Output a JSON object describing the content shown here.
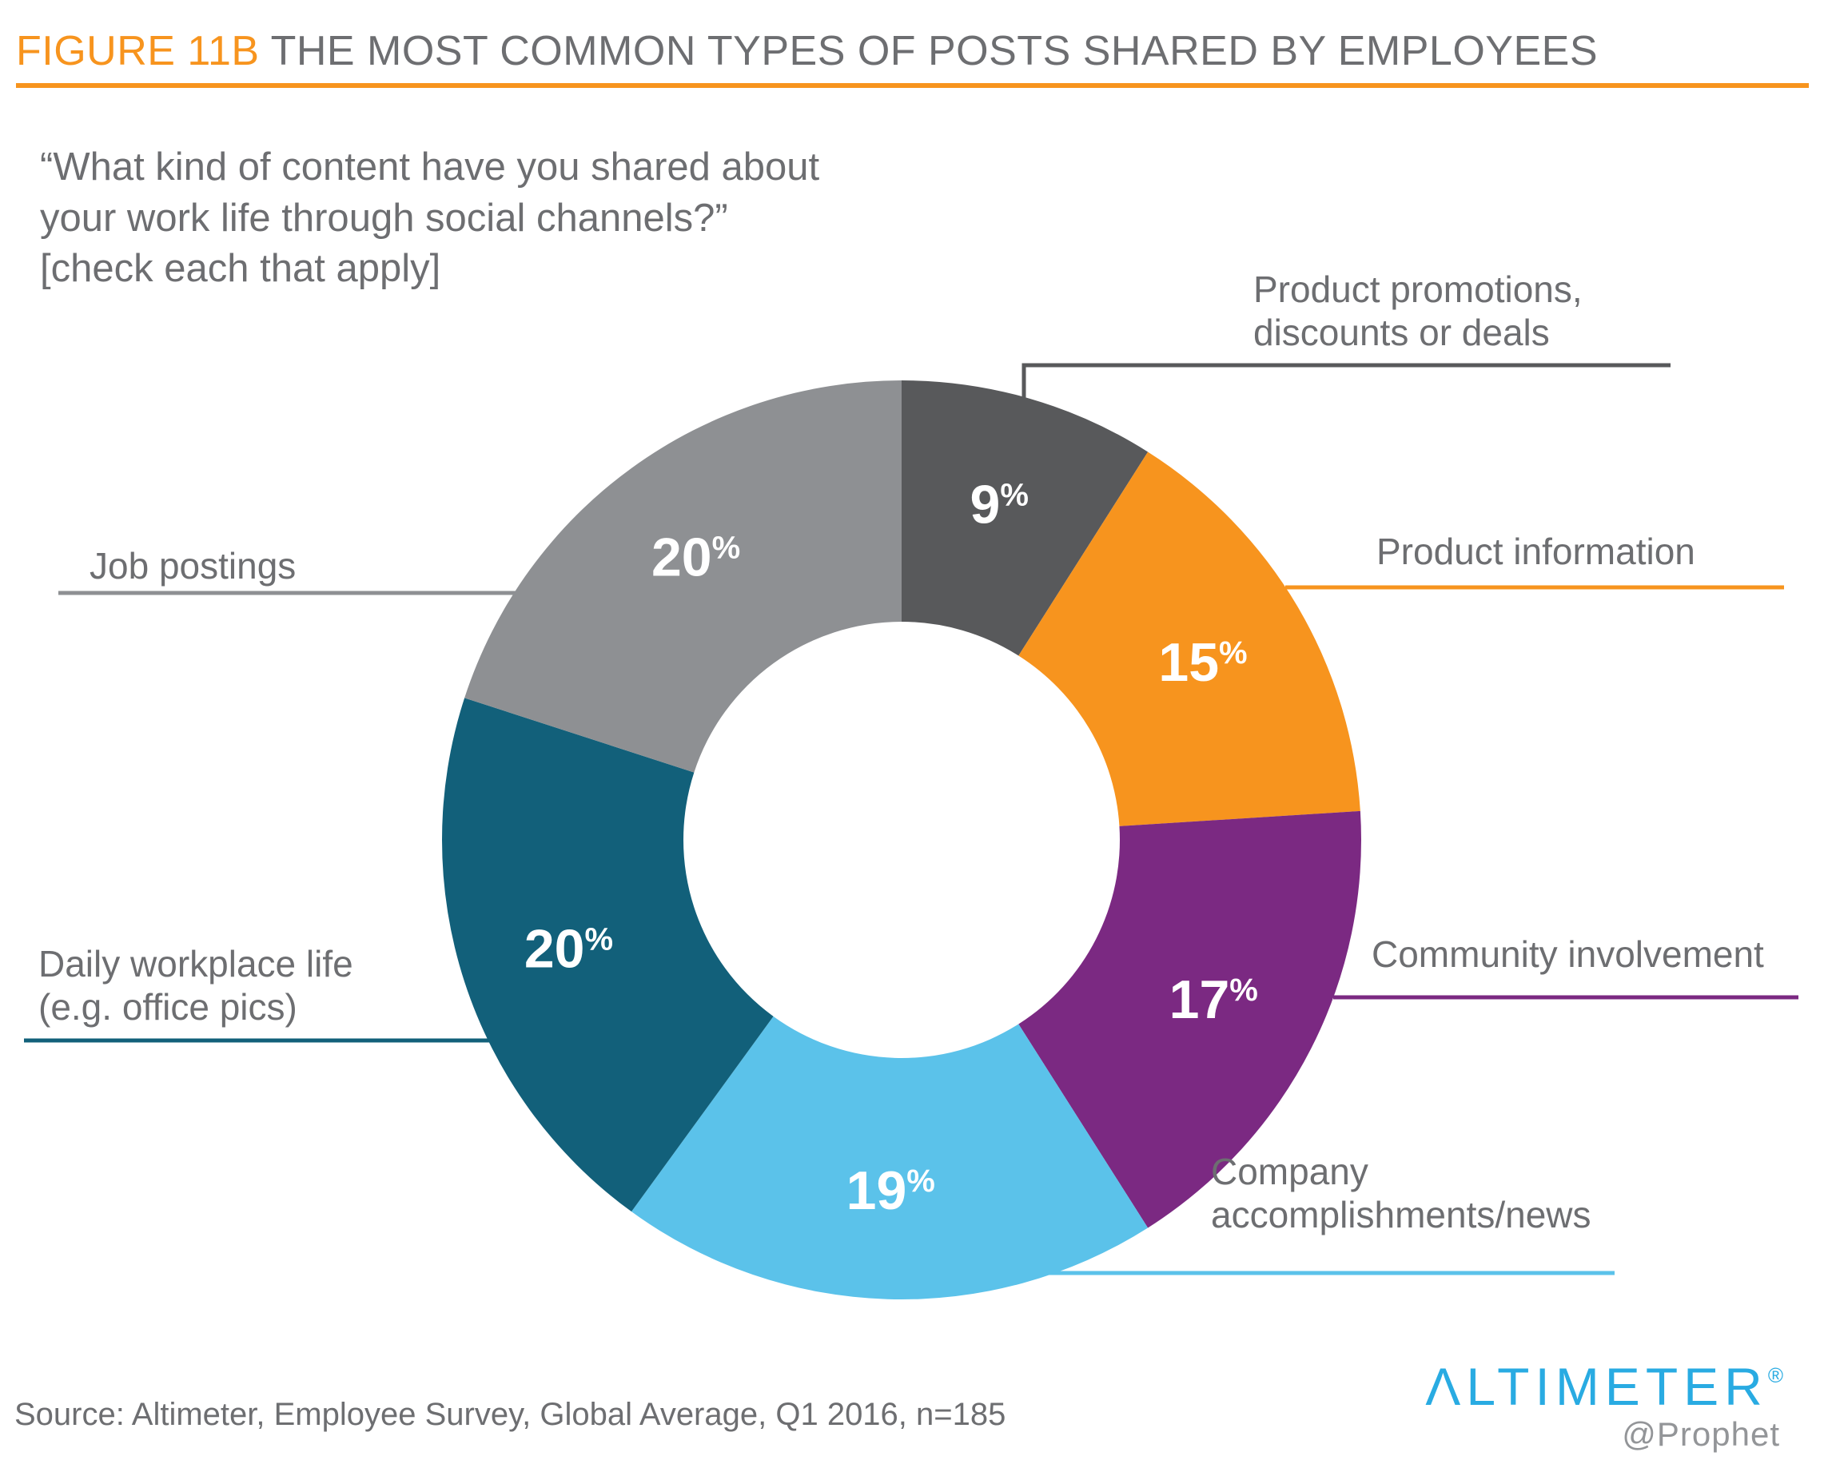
{
  "figure": {
    "label": "FIGURE 11B",
    "title": "THE MOST COMMON TYPES OF POSTS SHARED BY EMPLOYEES"
  },
  "question": {
    "line1": "“What kind of content have you shared about",
    "line2": "your work life through social channels?”",
    "line3": "[check each that apply]"
  },
  "chart_data": {
    "type": "pie",
    "variant": "donut",
    "title": "The most common types of posts shared by employees",
    "subtitle": "What kind of content have you shared about your work life through social channels? [check each that apply]",
    "units": "%",
    "total": 100,
    "start_angle_deg": 0,
    "direction": "clockwise",
    "legend_position": "callouts-around-chart",
    "segments": [
      {
        "label": "Product promotions, discounts or deals",
        "value": 9,
        "display": "9%",
        "color": "#58595B"
      },
      {
        "label": "Product information",
        "value": 15,
        "display": "15%",
        "color": "#F7941E"
      },
      {
        "label": "Community involvement",
        "value": 17,
        "display": "17%",
        "color": "#7B2982"
      },
      {
        "label": "Company accomplishments/news",
        "value": 19,
        "display": "19%",
        "color": "#5BC2EA"
      },
      {
        "label": "Daily workplace life (e.g. office pics)",
        "value": 20,
        "display": "20%",
        "color": "#12607A"
      },
      {
        "label": "Job postings",
        "value": 20,
        "display": "20%",
        "color": "#8E9093"
      }
    ]
  },
  "callouts": {
    "product_promotions": {
      "line1": "Product promotions,",
      "line2": "discounts or deals"
    },
    "product_information": {
      "line1": "Product information",
      "line2": ""
    },
    "community_involvement": {
      "line1": "Community involvement",
      "line2": ""
    },
    "company_accomplishments": {
      "line1": "Company",
      "line2": "accomplishments/news"
    },
    "daily_workplace": {
      "line1": "Daily workplace life",
      "line2": "(e.g. office pics)"
    },
    "job_postings": {
      "line1": "Job postings",
      "line2": ""
    }
  },
  "source": "Source: Altimeter, Employee Survey, Global Average, Q1 2016, n=185",
  "logo": {
    "brand": "ΛLTIMETER",
    "registered": "®",
    "sub": "@Prophet"
  },
  "colors": {
    "accent_orange": "#F7941E",
    "text_gray": "#6D6E71",
    "logo_blue": "#29ABE2",
    "logo_sub_gray": "#939598",
    "percent_label": "#FFFFFF"
  }
}
